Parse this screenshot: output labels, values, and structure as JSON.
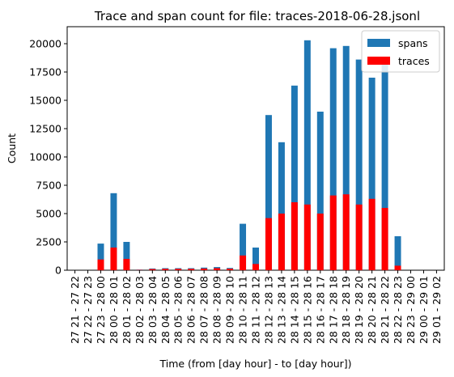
{
  "chart_data": {
    "type": "bar",
    "title": "Trace and span count for file: traces-2018-06-28.jsonl",
    "xlabel": "Time (from [day hour] - to [day hour])",
    "ylabel": "Count",
    "ylim": [
      0,
      21500
    ],
    "yticks": [
      0,
      2500,
      5000,
      7500,
      10000,
      12500,
      15000,
      17500,
      20000
    ],
    "legend_position": "top-right",
    "grid": false,
    "categories": [
      "27 21 - 27 22",
      "27 22 - 27 23",
      "27 23 - 28 00",
      "28 00 - 28 01",
      "28 01 - 28 02",
      "28 02 - 28 03",
      "28 03 - 28 04",
      "28 04 - 28 05",
      "28 05 - 28 06",
      "28 06 - 28 07",
      "28 07 - 28 08",
      "28 08 - 28 09",
      "28 09 - 28 10",
      "28 10 - 28 11",
      "28 11 - 28 12",
      "28 12 - 28 13",
      "28 13 - 28 14",
      "28 14 - 28 15",
      "28 15 - 28 16",
      "28 16 - 28 17",
      "28 17 - 28 18",
      "28 18 - 28 19",
      "28 19 - 28 20",
      "28 20 - 28 21",
      "28 21 - 28 22",
      "28 22 - 28 23",
      "28 23 - 29 00",
      "29 00 - 29 01",
      "29 01 - 29 02"
    ],
    "series": [
      {
        "name": "spans",
        "color": "#1f77b4",
        "values": [
          0,
          0,
          2350,
          6800,
          2500,
          60,
          150,
          180,
          180,
          180,
          230,
          280,
          200,
          4100,
          2000,
          13700,
          11300,
          16300,
          20300,
          14000,
          19600,
          19800,
          18600,
          17000,
          18200,
          3000,
          0,
          0,
          0
        ]
      },
      {
        "name": "traces",
        "color": "#ff0000",
        "values": [
          0,
          0,
          950,
          2000,
          1000,
          30,
          100,
          120,
          120,
          120,
          150,
          180,
          130,
          1300,
          550,
          4600,
          5000,
          6000,
          5800,
          5000,
          6600,
          6700,
          5800,
          6300,
          5500,
          400,
          0,
          0,
          0
        ]
      }
    ]
  }
}
